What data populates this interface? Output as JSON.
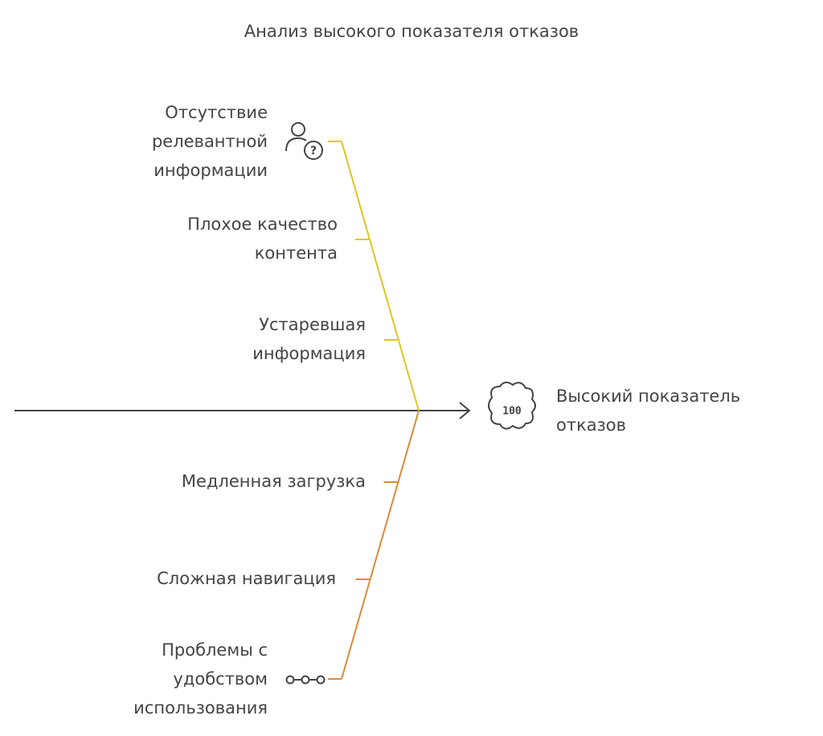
{
  "title": "Анализ высокого показателя отказов",
  "effect": {
    "icon_text": "100",
    "label": [
      "Высокий показатель",
      "отказов"
    ]
  },
  "branches": [
    {
      "color": "#dcc81e",
      "causes": [
        {
          "label": [
            "Отсутствие",
            "релевантной",
            "информации"
          ]
        },
        {
          "label": [
            "Плохое качество",
            "контента"
          ]
        },
        {
          "label": [
            "Устаревшая",
            "информация"
          ]
        }
      ]
    },
    {
      "color": "#d98c3c",
      "causes": [
        {
          "label": [
            "Медленная загрузка"
          ]
        },
        {
          "label": [
            "Сложная навигация"
          ]
        },
        {
          "label": [
            "Проблемы с",
            "удобством",
            "использования"
          ]
        }
      ]
    }
  ]
}
